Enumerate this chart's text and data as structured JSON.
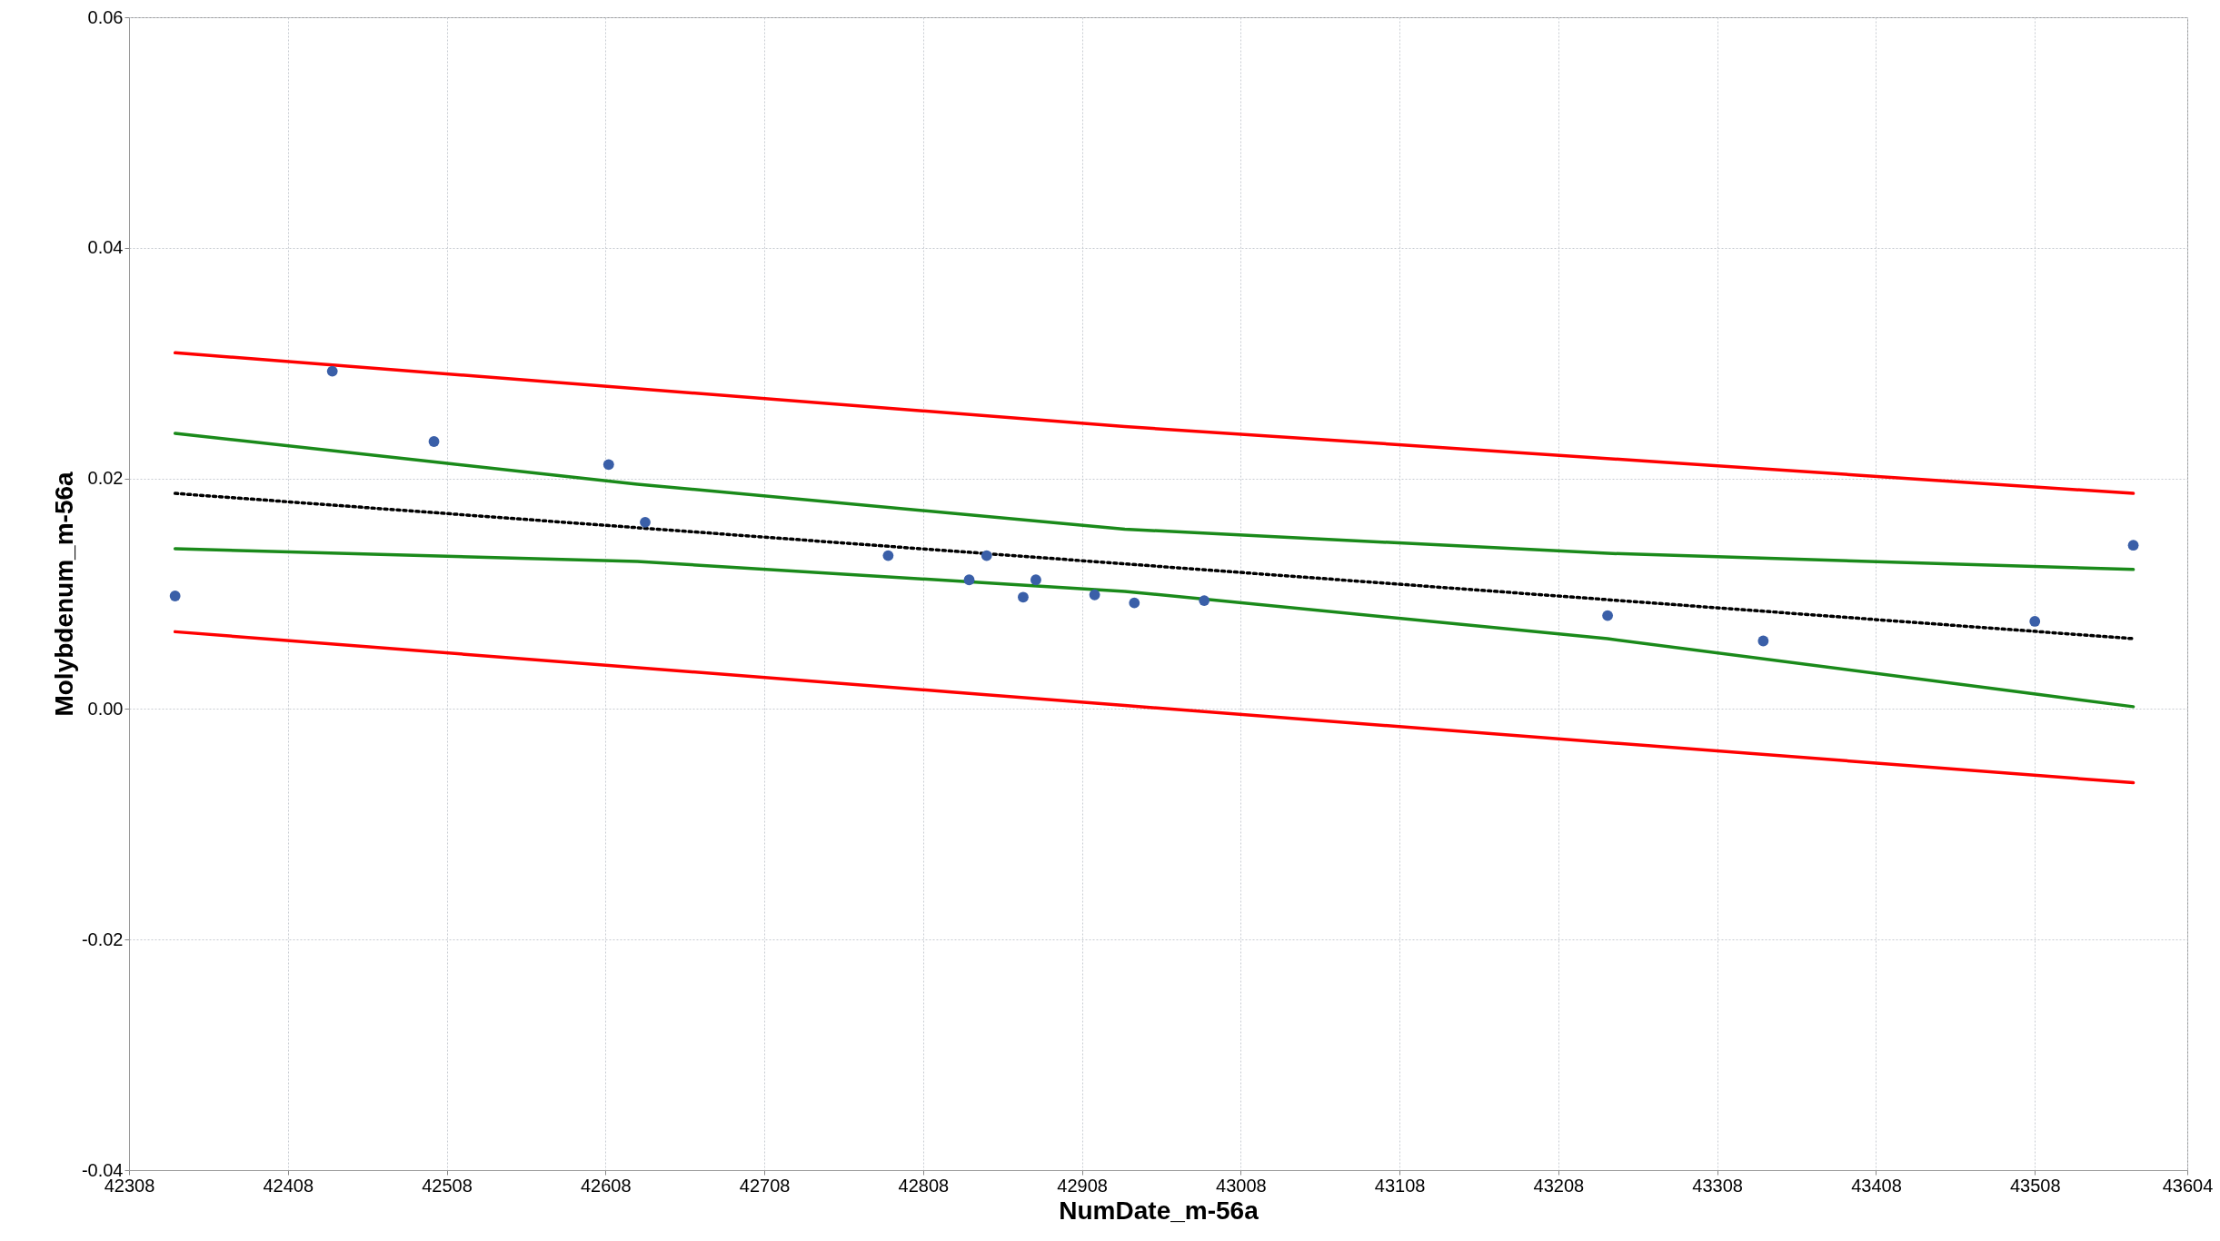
{
  "chart_data": {
    "type": "scatter",
    "xlabel": "NumDate_m-56a",
    "ylabel": "Molybdenum_m-56a",
    "xlim": [
      42308,
      43604
    ],
    "ylim": [
      -0.04,
      0.06
    ],
    "xticks": [
      42308,
      42408,
      42508,
      42608,
      42708,
      42808,
      42908,
      43008,
      43108,
      43208,
      43308,
      43408,
      43508,
      43604
    ],
    "yticks": [
      {
        "value": -0.04,
        "label": "-0.04"
      },
      {
        "value": -0.02,
        "label": "-0.02"
      },
      {
        "value": 0,
        "label": "0.00"
      },
      {
        "value": 0.02,
        "label": "0.02"
      },
      {
        "value": 0.04,
        "label": "0.04"
      },
      {
        "value": 0.06,
        "label": "0.06"
      }
    ],
    "grid": true,
    "series": [
      {
        "type": "line",
        "color": "#ff0000",
        "line_style": "solid",
        "x": [
          42337,
          42935,
          43570
        ],
        "values": [
          0.0309,
          0.0245,
          0.0187
        ]
      },
      {
        "type": "line",
        "color": "#1a8a1a",
        "line_style": "solid",
        "x": [
          42337,
          42628,
          42935,
          43239,
          43570
        ],
        "values": [
          0.0239,
          0.0195,
          0.0156,
          0.0135,
          0.0121
        ]
      },
      {
        "type": "line",
        "color": "#000000",
        "line_style": "dotted",
        "x": [
          42337,
          43570
        ],
        "values": [
          0.0187,
          0.0061
        ]
      },
      {
        "type": "line",
        "color": "#1a8a1a",
        "line_style": "solid",
        "x": [
          42337,
          42628,
          42935,
          43239,
          43570
        ],
        "values": [
          0.0139,
          0.0128,
          0.0102,
          0.0061,
          0.0002
        ]
      },
      {
        "type": "line",
        "color": "#ff0000",
        "line_style": "solid",
        "x": [
          42337,
          42935,
          43570
        ],
        "values": [
          0.0067,
          0.0003,
          -0.0064
        ]
      },
      {
        "color": "#3a5fa8",
        "marker": "circle",
        "x": [
          42337,
          42436,
          42500,
          42610,
          42633,
          42786,
          42837,
          42848,
          42871,
          42879,
          42916,
          42941,
          42985,
          43239,
          43337,
          43508,
          43570
        ],
        "values": [
          0.0098,
          0.0293,
          0.0232,
          0.0212,
          0.0162,
          0.0133,
          0.0112,
          0.0133,
          0.0097,
          0.0112,
          0.0099,
          0.0092,
          0.0094,
          0.0081,
          0.0059,
          0.0076,
          0.0142
        ]
      }
    ]
  }
}
